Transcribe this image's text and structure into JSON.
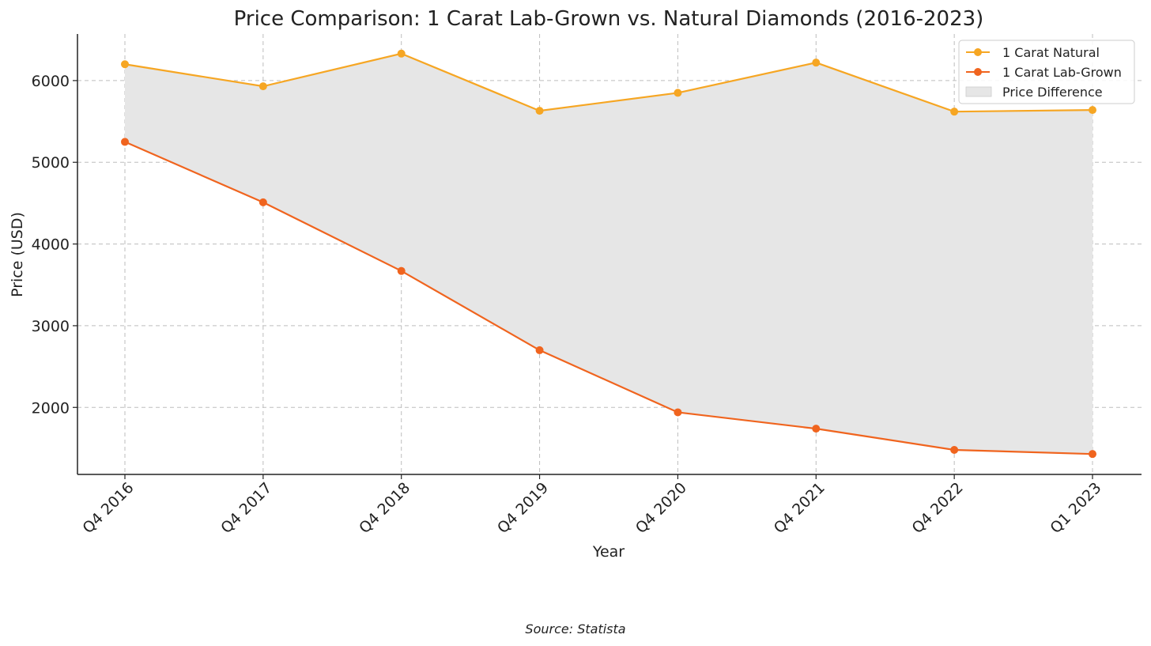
{
  "chart_data": {
    "type": "line",
    "title": "Price Comparison: 1 Carat Lab-Grown vs. Natural Diamonds (2016-2023)",
    "xlabel": "Year",
    "ylabel": "Price (USD)",
    "source": "Source: Statista",
    "categories": [
      "Q4 2016",
      "Q4 2017",
      "Q4 2018",
      "Q4 2019",
      "Q4 2020",
      "Q4 2021",
      "Q4 2022",
      "Q1 2023"
    ],
    "series": [
      {
        "name": "1 Carat Natural",
        "color": "#f6a623",
        "values": [
          6200,
          5930,
          6330,
          5630,
          5850,
          6220,
          5620,
          5640
        ]
      },
      {
        "name": "1 Carat Lab-Grown",
        "color": "#f0641e",
        "values": [
          5250,
          4510,
          3670,
          2700,
          1940,
          1740,
          1480,
          1430
        ]
      }
    ],
    "fill": {
      "name": "Price Difference",
      "color": "#e6e6e6"
    },
    "ylim": [
      1180,
      6570
    ],
    "yticks": [
      2000,
      3000,
      4000,
      5000,
      6000
    ],
    "grid": true,
    "legend_position": "top-right"
  }
}
